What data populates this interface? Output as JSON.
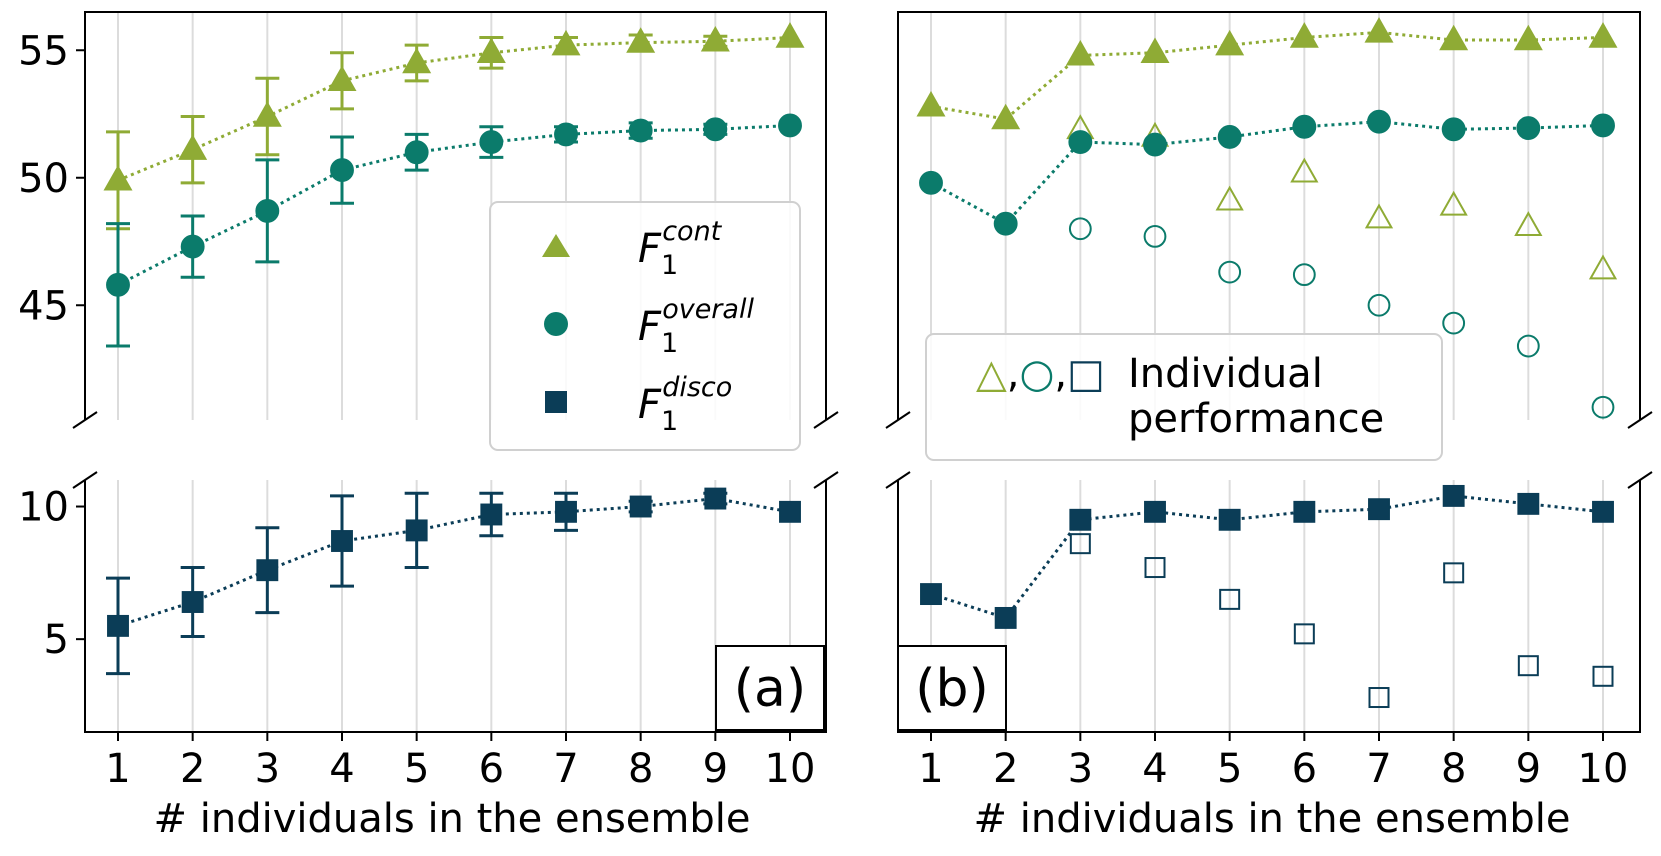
{
  "colors": {
    "cont": "#8fab35",
    "overall": "#0b7b6b",
    "disco": "#0b3d57"
  },
  "legend_a": {
    "cont_main": "F",
    "cont_sub": "1",
    "cont_sup": "cont",
    "overall_main": "F",
    "overall_sub": "1",
    "overall_sup": "overall",
    "disco_main": "F",
    "disco_sub": "1",
    "disco_sup": "disco"
  },
  "legend_b": {
    "symbols": "△,○,□",
    "line1": "Individual",
    "line2": "performance"
  },
  "panel_labels": {
    "a": "(a)",
    "b": "(b)"
  },
  "chart_data": [
    {
      "type": "line",
      "panel": "(a)",
      "xlabel": "# individuals in the ensemble",
      "x": [
        1,
        2,
        3,
        4,
        5,
        6,
        7,
        8,
        9,
        10
      ],
      "x_ticks": [
        "1",
        "2",
        "3",
        "4",
        "5",
        "6",
        "7",
        "8",
        "9",
        "10"
      ],
      "broken_y_axis": true,
      "upper_ylim": [
        40.5,
        56.5
      ],
      "upper_yticks": [
        "45",
        "50",
        "55"
      ],
      "lower_ylim": [
        1.5,
        11.0
      ],
      "lower_yticks": [
        "5",
        "10"
      ],
      "legend_placement": "center-right (upper panel)",
      "grid": "vertical",
      "series": [
        {
          "key": "cont",
          "marker": "triangle",
          "values": [
            49.9,
            51.1,
            52.4,
            53.8,
            54.5,
            54.9,
            55.2,
            55.3,
            55.35,
            55.5
          ],
          "error": [
            1.9,
            1.3,
            1.5,
            1.1,
            0.7,
            0.6,
            0.3,
            0.3,
            0.2,
            0.0
          ]
        },
        {
          "key": "overall",
          "marker": "circle",
          "values": [
            45.8,
            47.3,
            48.7,
            50.3,
            51.0,
            51.4,
            51.7,
            51.85,
            51.9,
            52.05
          ],
          "error": [
            2.4,
            1.2,
            2.0,
            1.3,
            0.7,
            0.6,
            0.3,
            0.3,
            0.2,
            0.0
          ]
        },
        {
          "key": "disco",
          "marker": "square",
          "values": [
            5.5,
            6.4,
            7.6,
            8.7,
            9.1,
            9.7,
            9.8,
            10.0,
            10.3,
            9.8
          ],
          "error": [
            1.8,
            1.3,
            1.6,
            1.7,
            1.4,
            0.8,
            0.7,
            0.2,
            0.2,
            0.0
          ]
        }
      ]
    },
    {
      "type": "line",
      "panel": "(b)",
      "xlabel": "# individuals in the ensemble",
      "x": [
        1,
        2,
        3,
        4,
        5,
        6,
        7,
        8,
        9,
        10
      ],
      "x_ticks": [
        "1",
        "2",
        "3",
        "4",
        "5",
        "6",
        "7",
        "8",
        "9",
        "10"
      ],
      "broken_y_axis": true,
      "upper_ylim": [
        40.5,
        56.5
      ],
      "lower_ylim": [
        1.5,
        11.0
      ],
      "legend_placement": "lower-center (upper panel)",
      "grid": "vertical",
      "series": [
        {
          "key": "cont",
          "marker": "triangle",
          "ensemble": [
            52.8,
            52.3,
            54.8,
            54.9,
            55.2,
            55.5,
            55.7,
            55.4,
            55.4,
            55.5
          ],
          "individual": [
            52.8,
            52.3,
            51.9,
            51.6,
            49.1,
            50.2,
            48.4,
            48.9,
            48.1,
            46.4
          ]
        },
        {
          "key": "overall",
          "marker": "circle",
          "ensemble": [
            49.8,
            48.2,
            51.4,
            51.3,
            51.6,
            52.0,
            52.2,
            51.9,
            51.95,
            52.05
          ],
          "individual": [
            49.8,
            48.2,
            48.0,
            47.7,
            46.3,
            46.2,
            45.0,
            44.3,
            43.4,
            41.0
          ]
        },
        {
          "key": "disco",
          "marker": "square",
          "ensemble": [
            6.7,
            5.8,
            9.5,
            9.8,
            9.5,
            9.8,
            9.9,
            10.4,
            10.1,
            9.8
          ],
          "individual": [
            6.7,
            5.8,
            8.6,
            7.7,
            6.5,
            5.2,
            2.8,
            7.5,
            4.0,
            3.6
          ]
        }
      ]
    }
  ]
}
